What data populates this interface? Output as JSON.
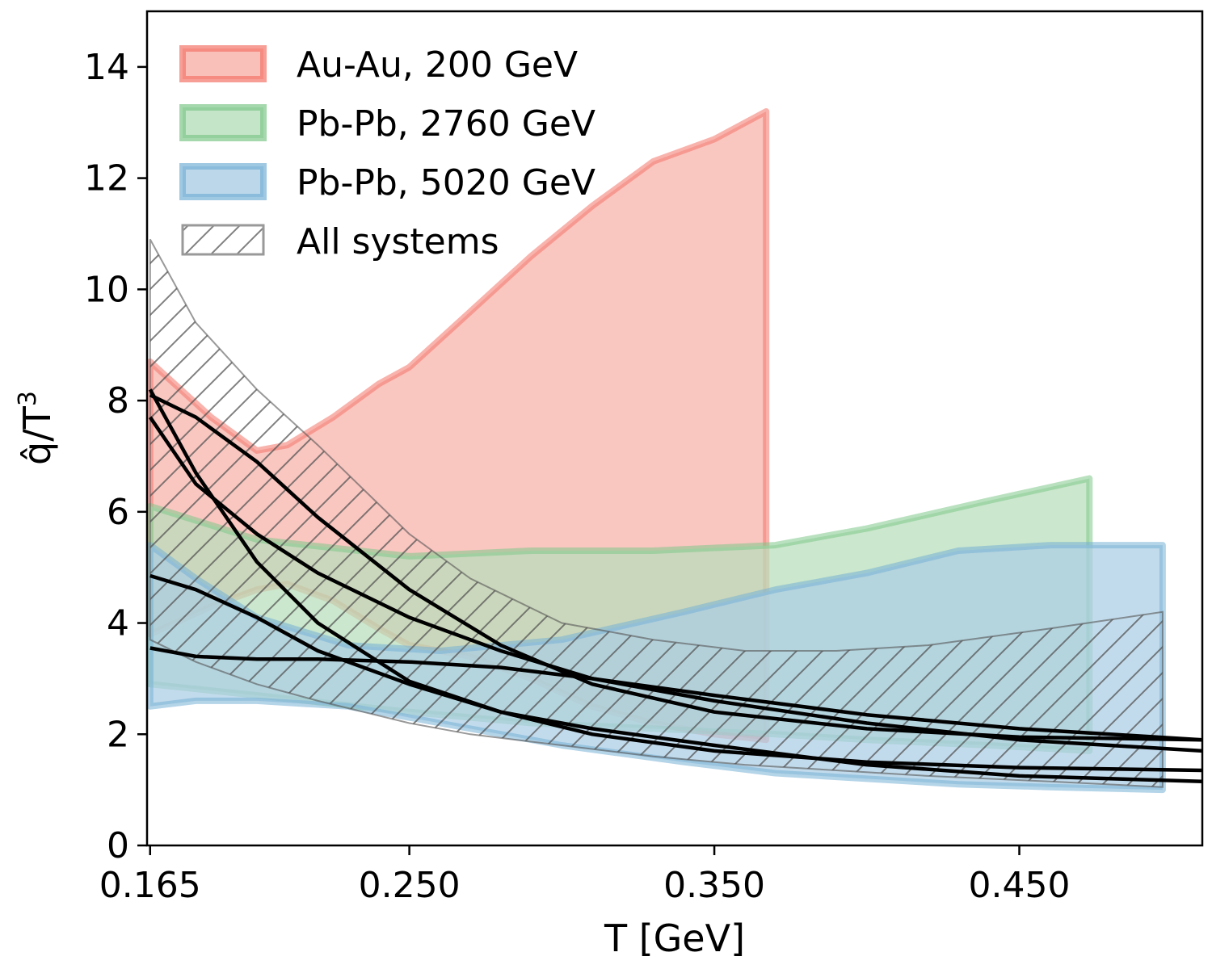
{
  "chart_data": {
    "type": "area",
    "xlabel": "T [GeV]",
    "ylabel_html": "q̂/T³",
    "ylabel": {
      "base": "q̂/T",
      "sup": "3"
    },
    "xlim": [
      0.164,
      0.51
    ],
    "ylim": [
      0,
      15
    ],
    "xticks": [
      0.165,
      0.25,
      0.35,
      0.45
    ],
    "xtick_labels": [
      "0.165",
      "0.250",
      "0.350",
      "0.450"
    ],
    "yticks": [
      0,
      2,
      4,
      6,
      8,
      10,
      12,
      14
    ],
    "ytick_labels": [
      "0",
      "2",
      "4",
      "6",
      "8",
      "10",
      "12",
      "14"
    ],
    "grid": false,
    "legend_position": "top-left",
    "bands": [
      {
        "name": "Au-Au, 200 GeV",
        "color": "#f4756a",
        "fill": "#f7b0a8",
        "x": [
          0.165,
          0.185,
          0.2,
          0.21,
          0.225,
          0.24,
          0.25,
          0.27,
          0.29,
          0.31,
          0.33,
          0.35,
          0.367
        ],
        "upper": [
          8.7,
          7.7,
          7.1,
          7.2,
          7.7,
          8.3,
          8.6,
          9.6,
          10.6,
          11.5,
          12.3,
          12.7,
          13.2
        ],
        "lower": [
          3.8,
          4.3,
          4.6,
          4.7,
          4.4,
          3.9,
          3.6,
          3.4,
          3.0,
          2.5,
          2.2,
          2.0,
          1.9
        ]
      },
      {
        "name": "Pb-Pb, 2760 GeV",
        "color": "#7fc88a",
        "fill": "#b7deba",
        "x": [
          0.165,
          0.2,
          0.25,
          0.29,
          0.33,
          0.37,
          0.4,
          0.44,
          0.473
        ],
        "upper": [
          6.1,
          5.5,
          5.2,
          5.3,
          5.3,
          5.4,
          5.7,
          6.2,
          6.6
        ],
        "lower": [
          2.9,
          2.7,
          2.4,
          2.2,
          2.1,
          2.0,
          1.9,
          1.8,
          1.7
        ]
      },
      {
        "name": "Pb-Pb, 5020 GeV",
        "color": "#76b0d6",
        "fill": "#abcde4",
        "x": [
          0.165,
          0.18,
          0.2,
          0.23,
          0.26,
          0.3,
          0.34,
          0.37,
          0.4,
          0.43,
          0.46,
          0.497
        ],
        "upper": [
          5.4,
          4.8,
          4.1,
          3.6,
          3.5,
          3.7,
          4.2,
          4.6,
          4.9,
          5.3,
          5.4,
          5.4
        ],
        "lower": [
          2.5,
          2.6,
          2.6,
          2.5,
          2.2,
          1.8,
          1.5,
          1.3,
          1.2,
          1.1,
          1.05,
          1.0
        ]
      }
    ],
    "hatched_band": {
      "name": "All systems",
      "color": "#555555",
      "x": [
        0.165,
        0.18,
        0.2,
        0.22,
        0.25,
        0.27,
        0.3,
        0.33,
        0.36,
        0.39,
        0.42,
        0.46,
        0.497
      ],
      "upper": [
        10.9,
        9.4,
        8.2,
        7.2,
        5.6,
        4.8,
        4.0,
        3.7,
        3.5,
        3.5,
        3.6,
        3.9,
        4.2
      ],
      "lower": [
        3.7,
        3.3,
        2.9,
        2.6,
        2.2,
        2.0,
        1.8,
        1.6,
        1.45,
        1.35,
        1.25,
        1.15,
        1.05
      ]
    },
    "lines": {
      "color": "#000000",
      "x": [
        0.165,
        0.18,
        0.2,
        0.22,
        0.25,
        0.28,
        0.31,
        0.35,
        0.4,
        0.45,
        0.51
      ],
      "series": [
        [
          8.1,
          7.7,
          6.9,
          5.9,
          4.6,
          3.6,
          2.9,
          2.4,
          2.1,
          1.95,
          1.9
        ],
        [
          8.2,
          6.7,
          5.1,
          4.0,
          2.95,
          2.4,
          2.1,
          1.8,
          1.45,
          1.25,
          1.15
        ],
        [
          7.7,
          6.5,
          5.6,
          4.9,
          4.1,
          3.5,
          3.0,
          2.6,
          2.2,
          1.9,
          1.7
        ],
        [
          4.85,
          4.6,
          4.1,
          3.5,
          2.9,
          2.4,
          2.0,
          1.7,
          1.5,
          1.4,
          1.35
        ],
        [
          3.55,
          3.4,
          3.35,
          3.35,
          3.3,
          3.2,
          3.0,
          2.7,
          2.35,
          2.1,
          1.9
        ]
      ]
    }
  }
}
